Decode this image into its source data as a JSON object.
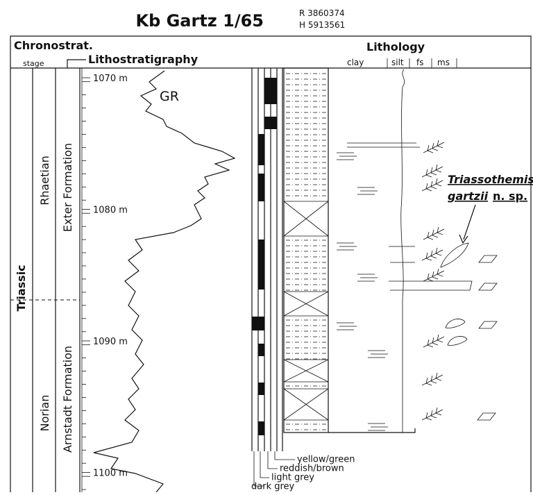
{
  "header": {
    "title": "Kb Gartz 1/65",
    "coord_r": "R 3860374",
    "coord_h": "H 5913561"
  },
  "columns": {
    "chronostrat": "Chronostrat.",
    "stage": "stage",
    "lithostrat": "Lithostratigraphy",
    "lithology": "Lithology",
    "clay": "clay",
    "silt": "silt",
    "fs": "fs",
    "ms": "ms"
  },
  "depths": [
    "1070 m",
    "1080 m",
    "1090 m",
    "1100 m"
  ],
  "gr_label": "GR",
  "units": {
    "system": "Triassic",
    "stage_upper": "Rhaetian",
    "stage_lower": "Norian",
    "formation_upper": "Exter Formation",
    "formation_lower": "Arnstadt Formation"
  },
  "species": {
    "genus": "Triassothemis",
    "epithet": "gartzii",
    "suffix": "n. sp."
  },
  "color_legend": [
    "yellow/green",
    "reddish/brown",
    "light grey",
    "dark grey"
  ]
}
